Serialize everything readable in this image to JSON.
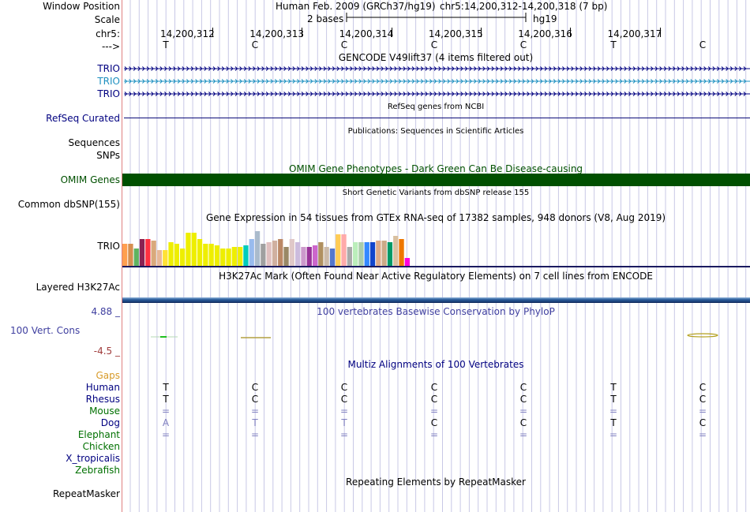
{
  "header": {
    "window_position_label": "Window Position",
    "scale_label": "Scale",
    "chr_label": "chr5:",
    "strand_label": "--->",
    "assembly": "Human Feb. 2009 (GRCh37/hg19)",
    "position": "chr5:14,200,312-14,200,318 (7 bp)",
    "scale_value": "2 bases",
    "db": "hg19",
    "coordinates": [
      "14,200,312",
      "14,200,313",
      "14,200,314",
      "14,200,315",
      "14,200,316",
      "14,200,317"
    ],
    "bases": [
      "T",
      "C",
      "C",
      "C",
      "C",
      "T",
      "C"
    ]
  },
  "gencode": {
    "title": "GENCODE V49lift37 (4 items filtered out)",
    "rows": [
      {
        "label": "TRIO",
        "color": "#000080"
      },
      {
        "label": "TRIO",
        "color": "#1e90c0"
      },
      {
        "label": "TRIO",
        "color": "#000080"
      }
    ]
  },
  "refseq": {
    "title": "RefSeq genes from NCBI",
    "label": "RefSeq Curated",
    "color": "#0c0c78"
  },
  "publications": {
    "title": "Publications: Sequences in Scientific Articles",
    "labels": [
      "Sequences",
      "SNPs"
    ]
  },
  "omim": {
    "title": "OMIM Gene Phenotypes - Dark Green Can Be Disease-causing",
    "label": "OMIM Genes",
    "color": "#005000"
  },
  "dbsnp": {
    "title": "Short Genetic Variants from dbSNP release 155",
    "label": "Common dbSNP(155)"
  },
  "gtex": {
    "title": "Gene Expression in 54 tissues from GTEx RNA-seq of 17382 samples, 948 donors (V8, Aug 2019)",
    "label": "TRIO"
  },
  "h3k27ac": {
    "title": "H3K27Ac Mark (Often Found Near Active Regulatory Elements) on 7 cell lines from ENCODE",
    "label": "Layered H3K27Ac"
  },
  "phylop": {
    "title": "100 vertebrates Basewise Conservation by PhyloP",
    "label": "100 Vert. Cons",
    "max_label": "4.88 _",
    "min_label": "-4.5 _"
  },
  "multiz": {
    "title": "Multiz Alignments of 100 Vertebrates",
    "gaps_label": "Gaps",
    "species": [
      {
        "name": "Human",
        "bases": [
          "T",
          "C",
          "C",
          "C",
          "C",
          "T",
          "C"
        ]
      },
      {
        "name": "Rhesus",
        "bases": [
          "T",
          "C",
          "C",
          "C",
          "C",
          "T",
          "C"
        ]
      },
      {
        "name": "Mouse",
        "bases": [
          "=",
          "=",
          "=",
          "=",
          "=",
          "=",
          "="
        ]
      },
      {
        "name": "Dog",
        "bases": [
          "A",
          "T",
          "T",
          "C",
          "C",
          "T",
          "C"
        ]
      },
      {
        "name": "Elephant",
        "bases": [
          "=",
          "=",
          "=",
          "=",
          "=",
          "=",
          "="
        ]
      },
      {
        "name": "Chicken",
        "bases": []
      },
      {
        "name": "X_tropicalis",
        "bases": []
      },
      {
        "name": "Zebrafish",
        "bases": []
      }
    ]
  },
  "repeatmasker": {
    "title": "Repeating Elements by RepeatMasker",
    "label": "RepeatMasker"
  },
  "colors": {
    "label_dark_blue": "#000080",
    "phylop_blue": "#4040a0",
    "phylop_neg": "#a03c3c",
    "gaps_orange": "#d79a28",
    "green_species": "#007000",
    "grid": "#c8c8e6"
  }
}
